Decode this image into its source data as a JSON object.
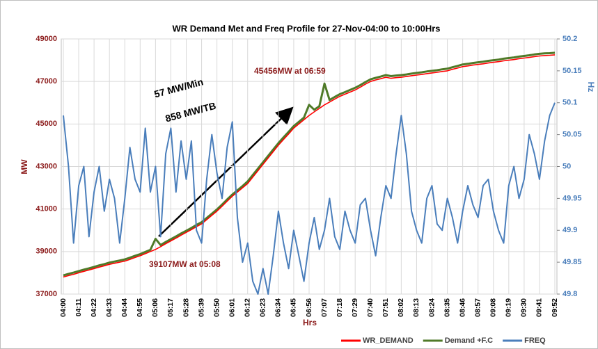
{
  "chart_data": {
    "type": "line",
    "title": "WR Demand Met and Freq Profile for 27-Nov-04:00 to 10:00Hrs",
    "x_label": "Hrs",
    "y_label": "MW",
    "y2_label": "Hz",
    "categories": [
      "04:00",
      null,
      null,
      "04:11",
      null,
      null,
      "04:22",
      null,
      null,
      "04:33",
      null,
      null,
      "04:44",
      null,
      null,
      "04:55",
      null,
      null,
      "05:06",
      null,
      null,
      "05:17",
      null,
      null,
      "05:28",
      null,
      null,
      "05:39",
      null,
      null,
      "05:50",
      null,
      null,
      "06:01",
      null,
      null,
      "06:12",
      null,
      null,
      "06:23",
      null,
      null,
      "06:34",
      null,
      null,
      "06:45",
      null,
      null,
      "06:56",
      null,
      null,
      "07:07",
      null,
      null,
      "07:18",
      null,
      null,
      "07:29",
      null,
      null,
      "07:40",
      null,
      null,
      "07:51",
      null,
      null,
      "08:02",
      null,
      null,
      "08:13",
      null,
      null,
      "08:24",
      null,
      null,
      "08:35",
      null,
      null,
      "08:46",
      null,
      null,
      "08:57",
      null,
      null,
      "09:08",
      null,
      null,
      "09:19",
      null,
      null,
      "09:30",
      null,
      null,
      "09:41",
      null,
      null,
      "09:52"
    ],
    "series": [
      {
        "name": "WR_DEMAND",
        "color": "#ff0000",
        "axis": "y",
        "values": [
          37800,
          37870,
          37930,
          38000,
          38070,
          38130,
          38200,
          38270,
          38330,
          38400,
          38450,
          38500,
          38550,
          38630,
          38720,
          38800,
          38900,
          39000,
          39100,
          39230,
          39370,
          39500,
          39630,
          39770,
          39900,
          40030,
          40170,
          40300,
          40500,
          40700,
          40900,
          41130,
          41370,
          41600,
          41800,
          42000,
          42200,
          42500,
          42800,
          43100,
          43400,
          43700,
          44000,
          44270,
          44530,
          44800,
          45000,
          45200,
          45400,
          45570,
          45730,
          45900,
          46030,
          46170,
          46300,
          46400,
          46500,
          46600,
          46730,
          46870,
          47000,
          47070,
          47130,
          47200,
          47150,
          47180,
          47200,
          47230,
          47270,
          47300,
          47330,
          47370,
          47400,
          47430,
          47470,
          47500,
          47570,
          47630,
          47700,
          47730,
          47770,
          47800,
          47830,
          47870,
          47900,
          47930,
          47970,
          48000,
          48030,
          48070,
          48100,
          48130,
          48170,
          48200,
          48220,
          48230,
          48250
        ]
      },
      {
        "name": "Demand +F.C",
        "color": "#4f7a28",
        "axis": "y",
        "values": [
          37880,
          37950,
          38010,
          38080,
          38150,
          38210,
          38280,
          38350,
          38410,
          38480,
          38530,
          38580,
          38630,
          38710,
          38800,
          38880,
          38980,
          39080,
          39600,
          39310,
          39450,
          39580,
          39710,
          39850,
          39980,
          40110,
          40250,
          40380,
          40580,
          40780,
          40980,
          41210,
          41450,
          41680,
          41880,
          42080,
          42300,
          42600,
          42900,
          43200,
          43500,
          43800,
          44100,
          44370,
          44630,
          44900,
          45100,
          45300,
          45900,
          45670,
          45830,
          46900,
          46130,
          46270,
          46400,
          46500,
          46600,
          46700,
          46830,
          46970,
          47100,
          47170,
          47230,
          47300,
          47250,
          47280,
          47300,
          47330,
          47370,
          47400,
          47430,
          47470,
          47500,
          47530,
          47570,
          47600,
          47670,
          47730,
          47800,
          47830,
          47870,
          47900,
          47930,
          47970,
          48000,
          48030,
          48070,
          48100,
          48130,
          48170,
          48200,
          48230,
          48270,
          48300,
          48320,
          48330,
          48350
        ]
      },
      {
        "name": "FREQ",
        "color": "#4a7ebb",
        "axis": "y2",
        "values": [
          50.08,
          50.0,
          49.88,
          49.97,
          50.0,
          49.89,
          49.96,
          50.0,
          49.93,
          49.98,
          49.95,
          49.88,
          49.95,
          50.03,
          49.98,
          49.96,
          50.06,
          49.96,
          50.0,
          49.89,
          50.02,
          50.06,
          49.96,
          50.04,
          49.98,
          50.04,
          49.9,
          49.88,
          49.98,
          50.05,
          49.99,
          49.95,
          50.03,
          50.07,
          49.92,
          49.85,
          49.88,
          49.82,
          49.8,
          49.84,
          49.8,
          49.86,
          49.93,
          49.88,
          49.84,
          49.9,
          49.86,
          49.82,
          49.88,
          49.92,
          49.87,
          49.9,
          49.95,
          49.89,
          49.87,
          49.93,
          49.9,
          49.88,
          49.94,
          49.95,
          49.9,
          49.86,
          49.92,
          49.97,
          49.95,
          50.02,
          50.08,
          50.02,
          49.93,
          49.9,
          49.88,
          49.95,
          49.97,
          49.91,
          49.9,
          49.95,
          49.92,
          49.88,
          49.93,
          49.97,
          49.94,
          49.92,
          49.97,
          49.98,
          49.93,
          49.9,
          49.88,
          49.97,
          50.0,
          49.95,
          49.98,
          50.05,
          50.02,
          49.98,
          50.04,
          50.08,
          50.1
        ]
      }
    ],
    "ylim": [
      37000,
      49000
    ],
    "yticks": [
      37000,
      39000,
      41000,
      43000,
      45000,
      47000,
      49000
    ],
    "y2lim": [
      49.8,
      50.2
    ],
    "y2ticks": [
      49.8,
      49.85,
      49.9,
      49.95,
      50,
      50.05,
      50.1,
      50.15,
      50.2
    ],
    "grid": true,
    "legend": "bottom-right",
    "annotations": [
      "45456MW at 06:59",
      "39107MW at 05:08",
      "57 MW/Min",
      "858 MW/TB"
    ]
  }
}
